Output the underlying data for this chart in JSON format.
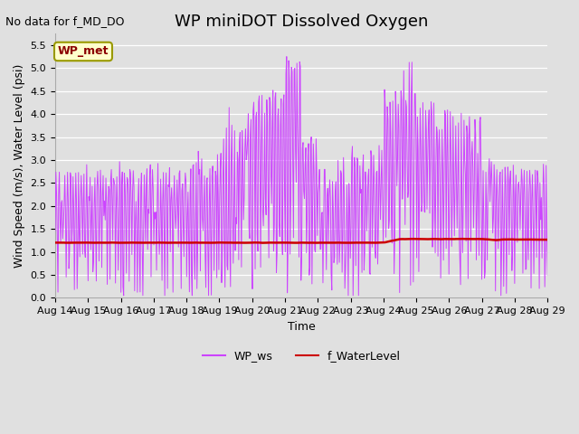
{
  "title": "WP miniDOT Dissolved Oxygen",
  "no_data_text": "No data for f_MD_DO",
  "xlabel": "Time",
  "ylabel": "Wind Speed (m/s), Water Level (psi)",
  "ylim": [
    0.0,
    5.75
  ],
  "yticks": [
    0.0,
    0.5,
    1.0,
    1.5,
    2.0,
    2.5,
    3.0,
    3.5,
    4.0,
    4.5,
    5.0,
    5.5
  ],
  "xtick_labels": [
    "Aug 14",
    "Aug 15",
    "Aug 16",
    "Aug 17",
    "Aug 18",
    "Aug 19",
    "Aug 20",
    "Aug 21",
    "Aug 22",
    "Aug 23",
    "Aug 24",
    "Aug 25",
    "Aug 26",
    "Aug 27",
    "Aug 28",
    "Aug 29"
  ],
  "wp_ws_color": "#cc44ff",
  "f_waterlevel_color": "#cc0000",
  "legend_label_ws": "WP_ws",
  "legend_label_wl": "f_WaterLevel",
  "annotation_label": "WP_met",
  "bg_color": "#e0e0e0",
  "grid_color": "#ffffff",
  "title_fontsize": 13,
  "label_fontsize": 9,
  "tick_fontsize": 8,
  "nodata_fontsize": 9,
  "annot_fontsize": 9
}
